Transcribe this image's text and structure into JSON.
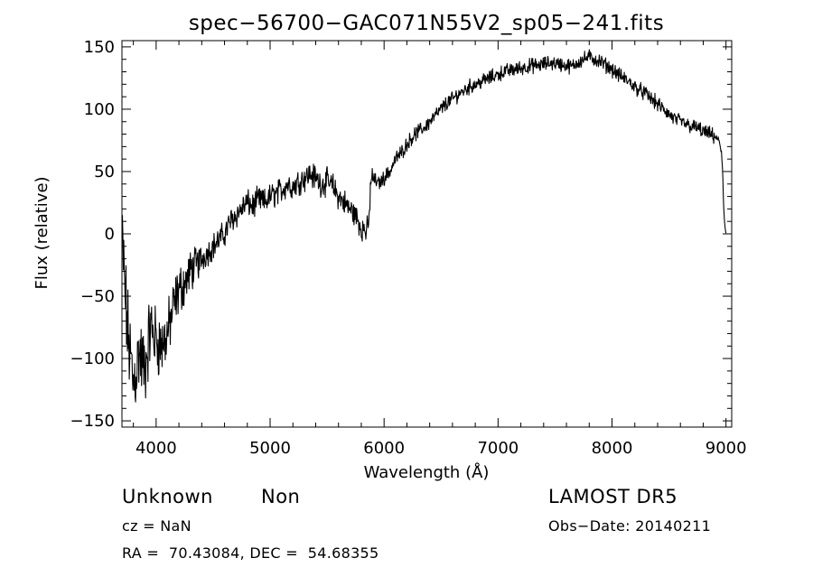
{
  "chart_data": {
    "type": "line",
    "title": "spec−56700−GAC071N55V2_sp05−241.fits",
    "xlabel": "Wavelength (Å)",
    "ylabel": "Flux (relative)",
    "xlim": [
      3700,
      9050
    ],
    "ylim": [
      -155,
      155
    ],
    "x_ticks": [
      4000,
      5000,
      6000,
      7000,
      8000,
      9000
    ],
    "y_ticks": [
      -150,
      -100,
      -50,
      0,
      50,
      100,
      150
    ],
    "grid": false,
    "series": [
      {
        "x": [
          3700,
          3750,
          3800,
          3850,
          3900,
          3950,
          4000,
          4050,
          4100,
          4150,
          4200,
          4250,
          4300,
          4350,
          4400,
          4450,
          4500,
          4550,
          4600,
          4650,
          4700,
          4750,
          4800,
          4850,
          4900,
          4950,
          5000,
          5050,
          5100,
          5150,
          5200,
          5250,
          5300,
          5350,
          5400,
          5450,
          5500,
          5550,
          5600,
          5650,
          5700,
          5750,
          5800,
          5850,
          5870,
          5880,
          5900,
          5950,
          6000,
          6050,
          6100,
          6150,
          6200,
          6250,
          6300,
          6350,
          6400,
          6450,
          6500,
          6550,
          6600,
          6650,
          6700,
          6750,
          6800,
          6850,
          6900,
          6950,
          7000,
          7050,
          7100,
          7150,
          7200,
          7250,
          7300,
          7350,
          7400,
          7450,
          7500,
          7550,
          7600,
          7650,
          7700,
          7750,
          7800,
          7850,
          7900,
          7950,
          8000,
          8050,
          8100,
          8150,
          8200,
          8250,
          8300,
          8350,
          8400,
          8450,
          8500,
          8550,
          8600,
          8650,
          8700,
          8750,
          8800,
          8850,
          8900,
          8940,
          8960,
          8970,
          8980,
          8990,
          9000
        ],
        "y": [
          -5,
          -80,
          -120,
          -95,
          -110,
          -75,
          -85,
          -90,
          -80,
          -60,
          -45,
          -40,
          -30,
          -25,
          -20,
          -15,
          -10,
          -5,
          0,
          10,
          15,
          20,
          25,
          22,
          28,
          25,
          30,
          32,
          35,
          40,
          38,
          42,
          45,
          48,
          45,
          40,
          42,
          38,
          30,
          25,
          20,
          15,
          5,
          2,
          10,
          40,
          45,
          40,
          45,
          50,
          60,
          65,
          72,
          78,
          82,
          85,
          90,
          95,
          100,
          105,
          108,
          112,
          115,
          118,
          120,
          122,
          124,
          126,
          128,
          130,
          131,
          132,
          133,
          134,
          135,
          135,
          136,
          137,
          137,
          136,
          135,
          134,
          138,
          140,
          142,
          140,
          138,
          135,
          132,
          128,
          125,
          122,
          118,
          115,
          112,
          108,
          104,
          100,
          96,
          92,
          90,
          88,
          86,
          85,
          82,
          80,
          78,
          75,
          65,
          50,
          20,
          5,
          0
        ]
      }
    ]
  },
  "footer": {
    "object": "Unknown",
    "class": "Non",
    "cz": "cz = NaN",
    "radec": "RA =  70.43084, DEC =  54.68355",
    "survey": "LAMOST DR5",
    "obsdate": "Obs−Date: 20140211"
  }
}
